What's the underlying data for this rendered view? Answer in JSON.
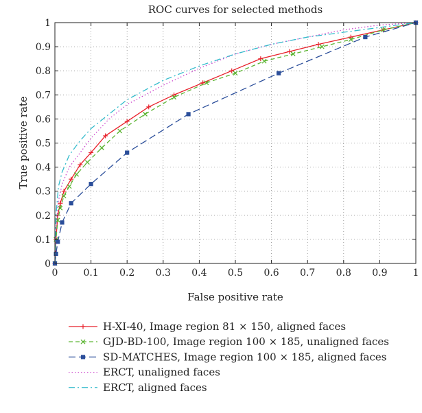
{
  "chart_data": {
    "type": "line",
    "title": "ROC curves for selected methods",
    "xlabel": "False positive rate",
    "ylabel": "True positive rate",
    "xlim": [
      0,
      1
    ],
    "ylim": [
      0,
      1
    ],
    "xticks": [
      0,
      0.1,
      0.2,
      0.3,
      0.4,
      0.5,
      0.6,
      0.7,
      0.8,
      0.9,
      1
    ],
    "yticks": [
      0,
      0.1,
      0.2,
      0.3,
      0.4,
      0.5,
      0.6,
      0.7,
      0.8,
      0.9,
      1
    ],
    "xtick_labels": [
      "0",
      "0.1",
      "0.2",
      "0.3",
      "0.4",
      "0.5",
      "0.6",
      "0.7",
      "0.8",
      "0.9",
      "1"
    ],
    "ytick_labels": [
      "0",
      "0.1",
      "0.2",
      "0.3",
      "0.4",
      "0.5",
      "0.6",
      "0.7",
      "0.8",
      "0.9",
      "1"
    ],
    "grid": true,
    "grid_style": "dotted",
    "legend_placement": "below the plot",
    "series": [
      {
        "name": "H-XI-40, Image region 81 × 150, aligned faces",
        "color": "#e8212b",
        "dash": "solid",
        "marker": "plus",
        "x": [
          0,
          0.003,
          0.008,
          0.015,
          0.025,
          0.045,
          0.07,
          0.1,
          0.14,
          0.2,
          0.26,
          0.33,
          0.41,
          0.49,
          0.57,
          0.65,
          0.73,
          0.82,
          0.91,
          1.0
        ],
        "y": [
          0,
          0.1,
          0.2,
          0.25,
          0.3,
          0.35,
          0.41,
          0.46,
          0.53,
          0.59,
          0.65,
          0.7,
          0.75,
          0.8,
          0.85,
          0.88,
          0.91,
          0.94,
          0.97,
          1.0
        ]
      },
      {
        "name": "GJD-BD-100, Image region 100 × 185, unaligned faces",
        "color": "#5bb431",
        "dash": "dashed",
        "marker": "x",
        "x": [
          0,
          0.003,
          0.008,
          0.015,
          0.025,
          0.04,
          0.06,
          0.09,
          0.13,
          0.18,
          0.25,
          0.33,
          0.42,
          0.5,
          0.58,
          0.66,
          0.74,
          0.82,
          0.91,
          1.0
        ],
        "y": [
          0,
          0.1,
          0.18,
          0.23,
          0.28,
          0.32,
          0.37,
          0.42,
          0.48,
          0.55,
          0.62,
          0.69,
          0.75,
          0.79,
          0.84,
          0.87,
          0.9,
          0.93,
          0.97,
          1.0
        ]
      },
      {
        "name": "SD-MATCHES, Image region 100 × 185, aligned faces",
        "color": "#2b4e9a",
        "dash": "longdash",
        "marker": "square",
        "x": [
          0,
          0.003,
          0.008,
          0.02,
          0.045,
          0.1,
          0.2,
          0.37,
          0.62,
          0.86,
          1.0
        ],
        "y": [
          0,
          0.04,
          0.09,
          0.17,
          0.25,
          0.33,
          0.46,
          0.62,
          0.79,
          0.94,
          1.0
        ]
      },
      {
        "name": "ERCT, unaligned faces",
        "color": "#cc44cc",
        "dash": "dotted",
        "marker": "none",
        "x": [
          0,
          0.003,
          0.01,
          0.02,
          0.04,
          0.07,
          0.1,
          0.15,
          0.2,
          0.3,
          0.4,
          0.5,
          0.6,
          0.7,
          0.8,
          0.9,
          1.0
        ],
        "y": [
          0,
          0.15,
          0.26,
          0.33,
          0.4,
          0.46,
          0.52,
          0.6,
          0.66,
          0.74,
          0.81,
          0.87,
          0.91,
          0.94,
          0.97,
          0.99,
          1.0
        ]
      },
      {
        "name": "ERCT, aligned faces",
        "color": "#33bbcc",
        "dash": "dashdot",
        "marker": "none",
        "x": [
          0,
          0.003,
          0.01,
          0.02,
          0.04,
          0.07,
          0.1,
          0.15,
          0.2,
          0.3,
          0.4,
          0.5,
          0.6,
          0.7,
          0.8,
          0.9,
          1.0
        ],
        "y": [
          0,
          0.2,
          0.32,
          0.38,
          0.45,
          0.51,
          0.56,
          0.62,
          0.68,
          0.76,
          0.82,
          0.87,
          0.91,
          0.94,
          0.96,
          0.98,
          1.0
        ]
      }
    ]
  }
}
